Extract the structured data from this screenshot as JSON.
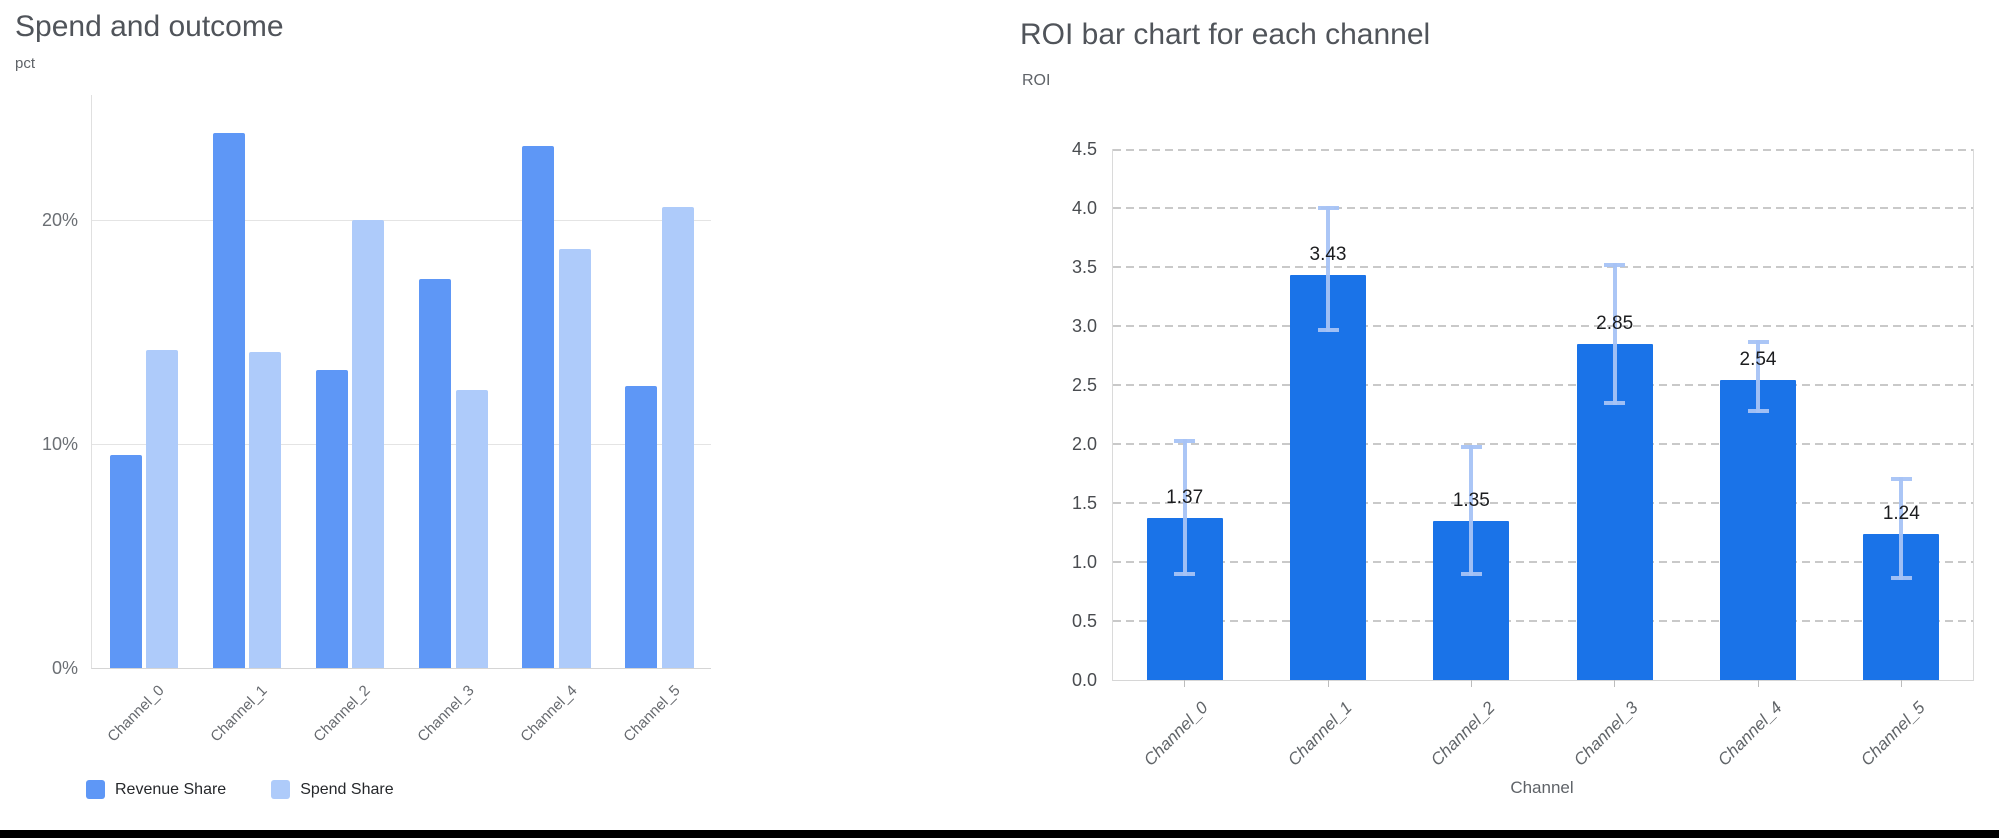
{
  "window": {
    "background": "#ffffff",
    "bottom_bar_color": "#000000"
  },
  "chart_data": [
    {
      "type": "bar",
      "title": "Spend and outcome",
      "xlabel": "",
      "ylabel": "pct",
      "categories": [
        "Channel_0",
        "Channel_1",
        "Channel_2",
        "Channel_3",
        "Channel_4",
        "Channel_5"
      ],
      "series": [
        {
          "name": "Revenue Share",
          "color": "#5e97f6",
          "values": [
            9.5,
            23.9,
            13.3,
            17.4,
            23.3,
            12.6
          ]
        },
        {
          "name": "Spend Share",
          "color": "#aecbfa",
          "values": [
            14.2,
            14.1,
            20.0,
            12.4,
            18.7,
            20.6
          ]
        }
      ],
      "ylim": [
        0,
        25.6
      ],
      "yticks": [
        0,
        10,
        20
      ],
      "ytick_labels": [
        "0%",
        "10%",
        "20%"
      ],
      "grid": "solid",
      "legend_position": "bottom-left"
    },
    {
      "type": "bar",
      "title": "ROI bar chart for each channel",
      "xlabel": "Channel",
      "ylabel": "ROI",
      "categories": [
        "Channel_0",
        "Channel_1",
        "Channel_2",
        "Channel_3",
        "Channel_4",
        "Channel_5"
      ],
      "values": [
        1.37,
        3.43,
        1.35,
        2.85,
        2.54,
        1.24
      ],
      "value_labels": [
        "1.37",
        "3.43",
        "1.35",
        "2.85",
        "2.54",
        "1.24"
      ],
      "error_bars": [
        [
          0.88,
          2.04
        ],
        [
          2.95,
          4.02
        ],
        [
          0.88,
          1.99
        ],
        [
          2.33,
          3.53
        ],
        [
          2.26,
          2.88
        ],
        [
          0.85,
          1.72
        ]
      ],
      "bar_color": "#1a73e8",
      "error_color": "#a6c3f5",
      "ylim": [
        0,
        4.5
      ],
      "yticks": [
        0,
        0.5,
        1,
        1.5,
        2,
        2.5,
        3,
        3.5,
        4,
        4.5
      ],
      "ytick_labels": [
        "0.0",
        "0.5",
        "1.0",
        "1.5",
        "2.0",
        "2.5",
        "3.0",
        "3.5",
        "4.0",
        "4.5"
      ],
      "grid": "dashed",
      "legend_position": "none"
    }
  ]
}
